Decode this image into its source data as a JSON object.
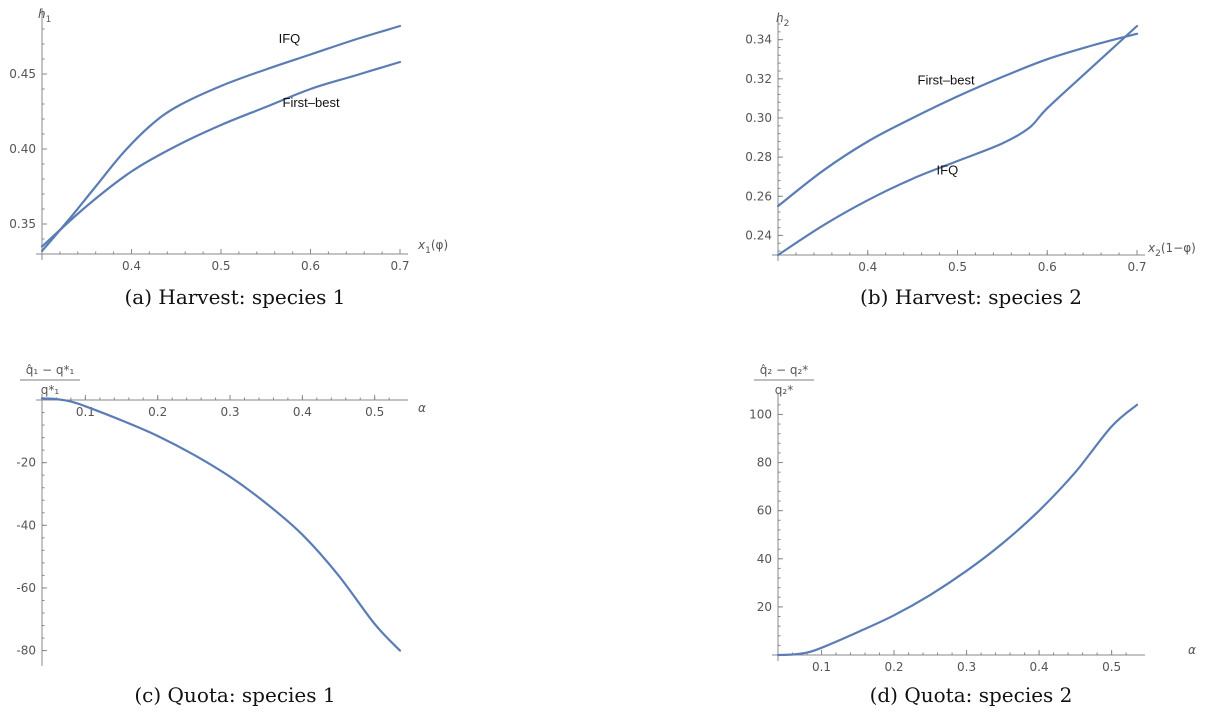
{
  "chart_data": [
    {
      "id": "a",
      "type": "line",
      "caption": "(a) Harvest: species 1",
      "ylabel": "h",
      "ylabel_sub": "1",
      "xlabel_pre": "x",
      "xlabel_sub": "1",
      "xlabel_post": "(φ)",
      "xlim": [
        0.3,
        0.7
      ],
      "ylim": [
        0.33,
        0.49
      ],
      "x_ticks": [
        0.4,
        0.5,
        0.6,
        0.7
      ],
      "x_tick_labels": [
        "0.4",
        "0.5",
        "0.6",
        "0.7"
      ],
      "y_ticks": [
        0.35,
        0.4,
        0.45
      ],
      "y_tick_labels": [
        "0.35",
        "0.40",
        "0.45"
      ],
      "annotations": [
        {
          "text": "IFQ",
          "x": 0.58,
          "y": 0.468
        },
        {
          "text": "First–best",
          "x": 0.6,
          "y": 0.428
        }
      ],
      "series": [
        {
          "name": "IFQ",
          "x": [
            0.3,
            0.33,
            0.36,
            0.39,
            0.42,
            0.45,
            0.5,
            0.55,
            0.6,
            0.65,
            0.7
          ],
          "y": [
            0.332,
            0.353,
            0.375,
            0.397,
            0.415,
            0.428,
            0.442,
            0.453,
            0.463,
            0.473,
            0.482
          ]
        },
        {
          "name": "First-best",
          "x": [
            0.3,
            0.35,
            0.4,
            0.45,
            0.5,
            0.55,
            0.6,
            0.65,
            0.7
          ],
          "y": [
            0.335,
            0.362,
            0.385,
            0.402,
            0.416,
            0.428,
            0.44,
            0.449,
            0.458
          ]
        }
      ]
    },
    {
      "id": "b",
      "type": "line",
      "caption": "(b) Harvest: species 2",
      "ylabel": "h",
      "ylabel_sub": "2",
      "xlabel_pre": "x",
      "xlabel_sub": "2",
      "xlabel_post": "(1−φ)",
      "xlim": [
        0.3,
        0.7
      ],
      "ylim": [
        0.23,
        0.348
      ],
      "x_ticks": [
        0.4,
        0.5,
        0.6,
        0.7
      ],
      "x_tick_labels": [
        "0.4",
        "0.5",
        "0.6",
        "0.7"
      ],
      "y_ticks": [
        0.24,
        0.26,
        0.28,
        0.3,
        0.32,
        0.34
      ],
      "y_tick_labels": [
        "0.24",
        "0.26",
        "0.28",
        "0.30",
        "0.32",
        "0.34"
      ],
      "annotations": [
        {
          "text": "First–best",
          "x": 0.5,
          "y": 0.317
        },
        {
          "text": "IFQ",
          "x": 0.49,
          "y": 0.271
        }
      ],
      "series": [
        {
          "name": "First-best",
          "x": [
            0.3,
            0.35,
            0.4,
            0.45,
            0.5,
            0.55,
            0.6,
            0.65,
            0.7
          ],
          "y": [
            0.255,
            0.273,
            0.288,
            0.3,
            0.311,
            0.321,
            0.33,
            0.337,
            0.343
          ]
        },
        {
          "name": "IFQ",
          "x": [
            0.3,
            0.35,
            0.4,
            0.45,
            0.5,
            0.55,
            0.58,
            0.6,
            0.65,
            0.7
          ],
          "y": [
            0.23,
            0.245,
            0.258,
            0.269,
            0.278,
            0.287,
            0.295,
            0.305,
            0.326,
            0.347
          ]
        }
      ]
    },
    {
      "id": "c",
      "type": "line",
      "caption": "(c) Quota: species 1",
      "ylabel_frac": {
        "num": "q̂₁ − q*₁",
        "den": "q*₁"
      },
      "xlabel_pre": "α",
      "xlabel_sub": "",
      "xlabel_post": "",
      "xlim": [
        0.04,
        0.535
      ],
      "ylim": [
        -83,
        0
      ],
      "x_ticks": [
        0.1,
        0.2,
        0.3,
        0.4,
        0.5
      ],
      "x_tick_labels": [
        "0.1",
        "0.2",
        "0.3",
        "0.4",
        "0.5"
      ],
      "y_ticks": [
        -20,
        -40,
        -60,
        -80
      ],
      "y_tick_labels": [
        "-20",
        "-40",
        "-60",
        "-80"
      ],
      "annotations": [],
      "series": [
        {
          "name": "",
          "x": [
            0.04,
            0.06,
            0.08,
            0.1,
            0.15,
            0.2,
            0.25,
            0.3,
            0.35,
            0.4,
            0.45,
            0.5,
            0.535
          ],
          "y": [
            0.5,
            0.3,
            -0.5,
            -2,
            -6.5,
            -11.5,
            -17.5,
            -24.5,
            -33,
            -43,
            -56,
            -71.5,
            -80
          ]
        }
      ]
    },
    {
      "id": "d",
      "type": "line",
      "caption": "(d) Quota: species 2",
      "ylabel_frac": {
        "num": "q̂₂ − q₂*",
        "den": "q₂*"
      },
      "xlabel_pre": "α",
      "xlabel_sub": "",
      "xlabel_post": "",
      "xlim": [
        0.04,
        0.535
      ],
      "ylim": [
        0,
        106
      ],
      "x_ticks": [
        0.1,
        0.2,
        0.3,
        0.4,
        0.5
      ],
      "x_tick_labels": [
        "0.1",
        "0.2",
        "0.3",
        "0.4",
        "0.5"
      ],
      "y_ticks": [
        20,
        40,
        60,
        80,
        100
      ],
      "y_tick_labels": [
        "20",
        "40",
        "60",
        "80",
        "100"
      ],
      "annotations": [],
      "series": [
        {
          "name": "",
          "x": [
            0.04,
            0.06,
            0.08,
            0.1,
            0.15,
            0.2,
            0.25,
            0.3,
            0.35,
            0.4,
            0.45,
            0.5,
            0.535
          ],
          "y": [
            0,
            0.2,
            1,
            3,
            9.5,
            16.5,
            25,
            35,
            46.5,
            60,
            76,
            95,
            104
          ]
        }
      ]
    }
  ],
  "style": {
    "line_color": "#5b7db5",
    "axis_color": "#888888",
    "tick_text_color": "#555555"
  }
}
